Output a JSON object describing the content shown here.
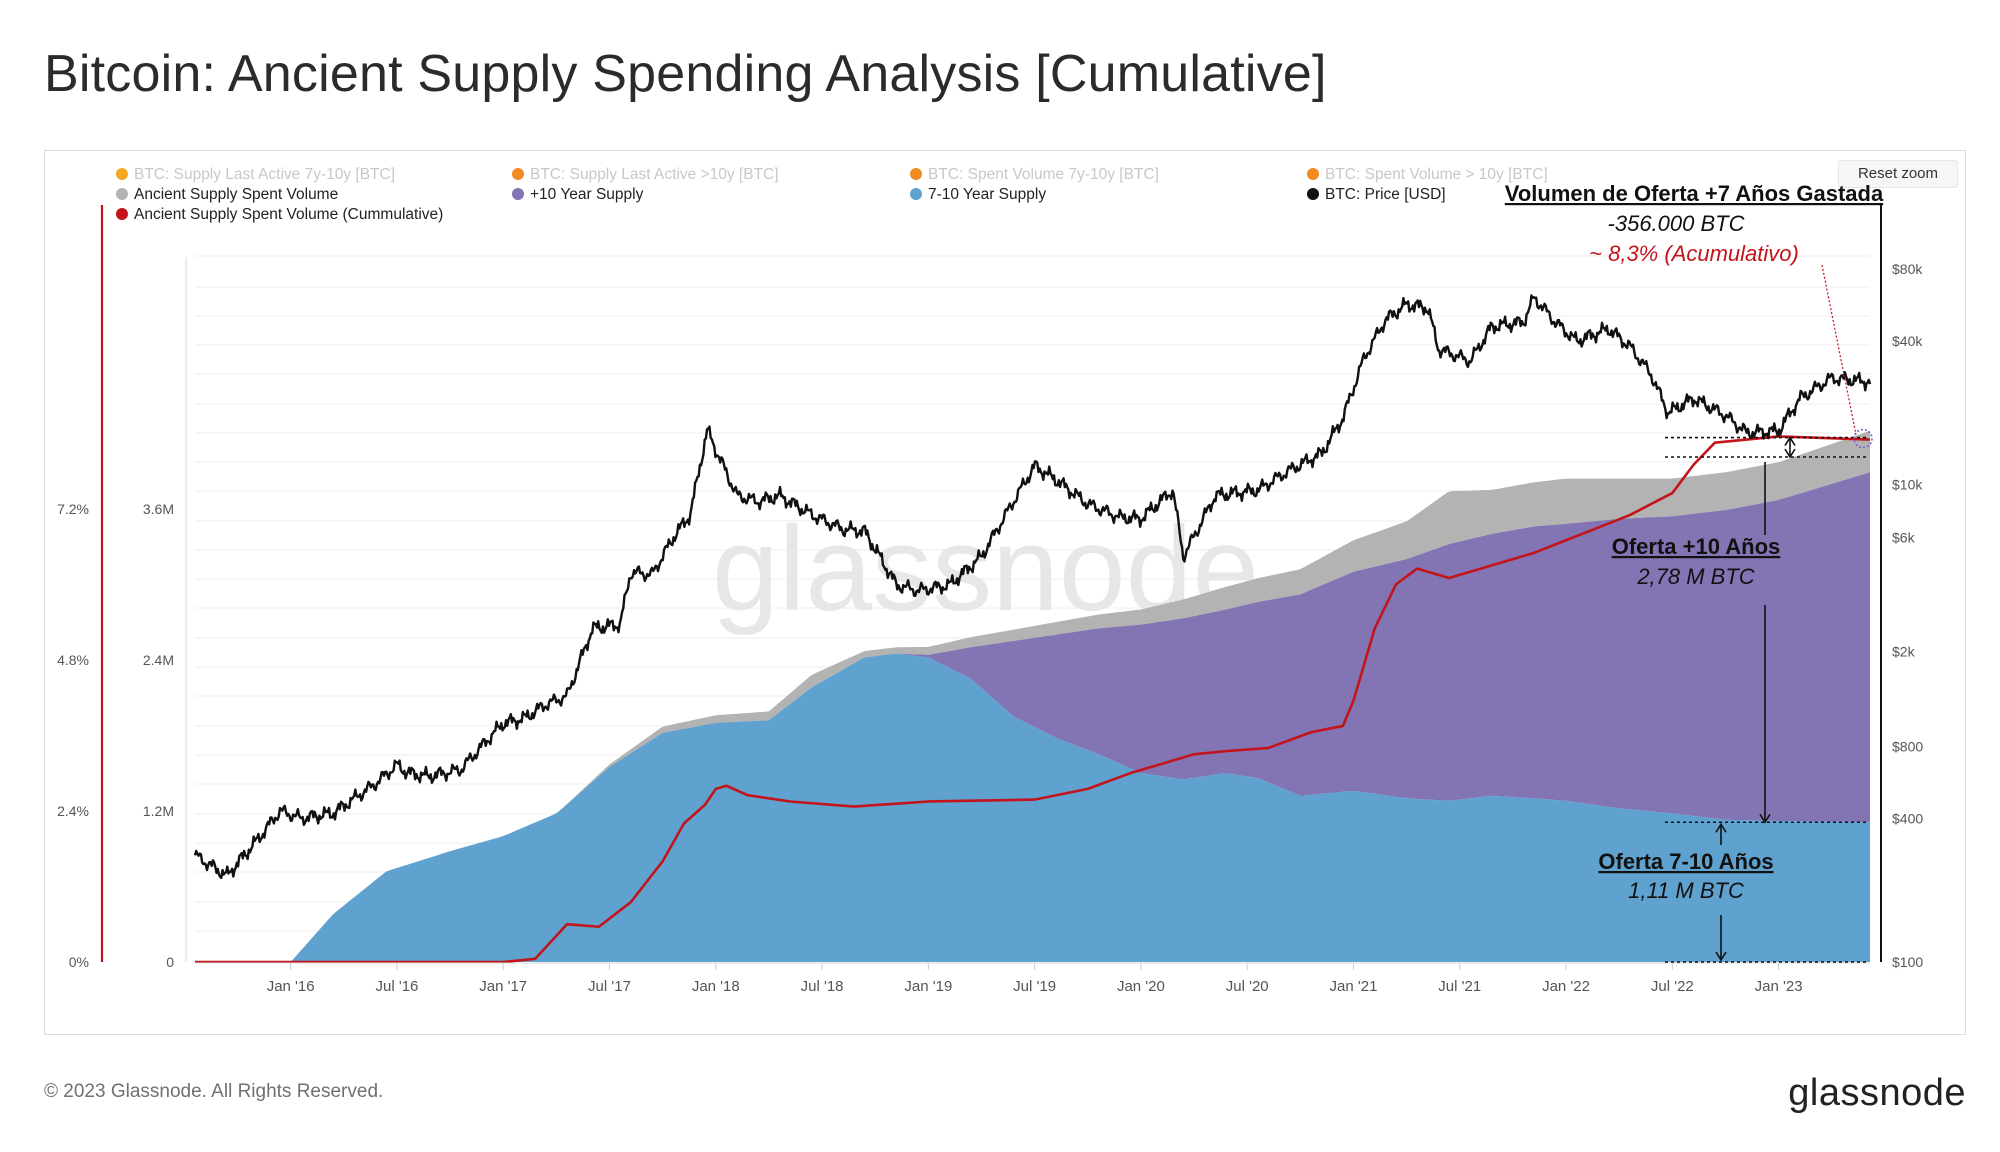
{
  "page": {
    "title": "Bitcoin: Ancient Supply Spending Analysis [Cumulative]",
    "footer": "© 2023 Glassnode. All Rights Reserved.",
    "brand": "glassnode",
    "reset_zoom": "Reset zoom",
    "watermark": "glassnode"
  },
  "legend": [
    {
      "label": "BTC: Supply Last Active 7y-10y [BTC]",
      "color": "#f5a623",
      "active": false
    },
    {
      "label": "BTC: Supply Last Active >10y [BTC]",
      "color": "#f28a22",
      "active": false
    },
    {
      "label": "BTC: Spent Volume 7y-10y [BTC]",
      "color": "#f28a22",
      "active": false
    },
    {
      "label": "BTC: Spent Volume > 10y [BTC]",
      "color": "#f28a22",
      "active": false
    },
    {
      "label": "Ancient Supply Spent Volume",
      "color": "#b3b3b3",
      "active": true
    },
    {
      "label": "+10 Year Supply",
      "color": "#8374b3",
      "active": true
    },
    {
      "label": "7-10 Year Supply",
      "color": "#5fa2cf",
      "active": true
    },
    {
      "label": "BTC: Price [USD]",
      "color": "#111111",
      "active": true
    },
    {
      "label": "Ancient Supply Spent Volume (Cummulative)",
      "color": "#c4141b",
      "active": true
    }
  ],
  "annotations": {
    "spent_title": "Volumen de Oferta +7 Años Gastada",
    "spent_value": "-356.000 BTC",
    "spent_pct": "~ 8,3% (Acumulativo)",
    "ten_title": "Oferta +10 Años",
    "ten_value": "2,78 M BTC",
    "seven_title": "Oferta 7-10 Años",
    "seven_value": "1,11 M BTC"
  },
  "chart_data": {
    "type": "area",
    "x_ticks": [
      "Jan '16",
      "Jul '16",
      "Jan '17",
      "Jul '17",
      "Jan '18",
      "Jul '18",
      "Jan '19",
      "Jul '19",
      "Jan '20",
      "Jul '20",
      "Jan '21",
      "Jul '21",
      "Jan '22",
      "Jul '22",
      "Jan '23"
    ],
    "xlim": [
      2015.55,
      2023.43
    ],
    "y_left_pct": {
      "ticks": [
        "0%",
        "2.4%",
        "4.8%",
        "7.2%"
      ],
      "ylim": [
        0,
        11.2
      ]
    },
    "y_left_supply": {
      "ticks": [
        "0",
        "1.2M",
        "2.4M",
        "3.6M"
      ],
      "ylim": [
        0,
        5.6
      ]
    },
    "y_right_price": {
      "ticks": [
        "$100",
        "$400",
        "$800",
        "$2k",
        "$6k",
        "$10k",
        "$40k",
        "$80k"
      ],
      "scale": "log",
      "ylim": [
        100,
        90000
      ]
    },
    "series": [
      {
        "name": "7-10 Year Supply",
        "unit": "M BTC",
        "color": "#5fa2cf",
        "points": [
          [
            2015.55,
            0
          ],
          [
            2016.0,
            0
          ],
          [
            2016.2,
            0.38
          ],
          [
            2016.45,
            0.72
          ],
          [
            2016.75,
            0.88
          ],
          [
            2017.0,
            1.0
          ],
          [
            2017.25,
            1.18
          ],
          [
            2017.5,
            1.55
          ],
          [
            2017.75,
            1.82
          ],
          [
            2018.0,
            1.9
          ],
          [
            2018.25,
            1.92
          ],
          [
            2018.45,
            2.18
          ],
          [
            2018.7,
            2.42
          ],
          [
            2018.85,
            2.45
          ],
          [
            2019.0,
            2.42
          ],
          [
            2019.2,
            2.25
          ],
          [
            2019.4,
            1.95
          ],
          [
            2019.6,
            1.78
          ],
          [
            2019.8,
            1.65
          ],
          [
            2020.0,
            1.5
          ],
          [
            2020.2,
            1.45
          ],
          [
            2020.4,
            1.5
          ],
          [
            2020.55,
            1.46
          ],
          [
            2020.75,
            1.32
          ],
          [
            2021.0,
            1.36
          ],
          [
            2021.25,
            1.3
          ],
          [
            2021.45,
            1.28
          ],
          [
            2021.65,
            1.32
          ],
          [
            2021.85,
            1.3
          ],
          [
            2022.0,
            1.28
          ],
          [
            2022.25,
            1.22
          ],
          [
            2022.5,
            1.18
          ],
          [
            2022.75,
            1.13
          ],
          [
            2023.0,
            1.12
          ],
          [
            2023.43,
            1.11
          ]
        ]
      },
      {
        "name": "+10 Year Supply",
        "unit": "M BTC",
        "color": "#8374b3",
        "points": [
          [
            2018.85,
            0
          ],
          [
            2019.0,
            0.02
          ],
          [
            2019.2,
            0.25
          ],
          [
            2019.4,
            0.6
          ],
          [
            2019.6,
            0.82
          ],
          [
            2019.8,
            1.0
          ],
          [
            2020.0,
            1.18
          ],
          [
            2020.2,
            1.28
          ],
          [
            2020.4,
            1.3
          ],
          [
            2020.55,
            1.4
          ],
          [
            2020.75,
            1.6
          ],
          [
            2021.0,
            1.74
          ],
          [
            2021.25,
            1.9
          ],
          [
            2021.45,
            2.04
          ],
          [
            2021.65,
            2.08
          ],
          [
            2021.85,
            2.16
          ],
          [
            2022.0,
            2.2
          ],
          [
            2022.25,
            2.3
          ],
          [
            2022.5,
            2.36
          ],
          [
            2022.75,
            2.46
          ],
          [
            2023.0,
            2.55
          ],
          [
            2023.43,
            2.78
          ]
        ]
      },
      {
        "name": "Ancient Supply Spent Volume",
        "unit": "M BTC",
        "color": "#b3b3b3",
        "points": [
          [
            2017.3,
            0
          ],
          [
            2017.5,
            0.02
          ],
          [
            2017.75,
            0.05
          ],
          [
            2018.0,
            0.06
          ],
          [
            2018.25,
            0.07
          ],
          [
            2018.45,
            0.1
          ],
          [
            2018.7,
            0.05
          ],
          [
            2018.85,
            0.05
          ],
          [
            2019.2,
            0.08
          ],
          [
            2019.6,
            0.1
          ],
          [
            2020.0,
            0.12
          ],
          [
            2020.2,
            0.15
          ],
          [
            2020.4,
            0.18
          ],
          [
            2020.75,
            0.2
          ],
          [
            2021.0,
            0.25
          ],
          [
            2021.25,
            0.3
          ],
          [
            2021.45,
            0.42
          ],
          [
            2021.65,
            0.35
          ],
          [
            2021.85,
            0.35
          ],
          [
            2022.0,
            0.36
          ],
          [
            2022.25,
            0.32
          ],
          [
            2022.5,
            0.3
          ],
          [
            2022.75,
            0.3
          ],
          [
            2023.0,
            0.3
          ],
          [
            2023.43,
            0.33
          ]
        ]
      },
      {
        "name": "Ancient Supply Spent Volume (Cummulative)",
        "unit": "%",
        "color": "#c4141b",
        "points": [
          [
            2015.55,
            0
          ],
          [
            2017.0,
            0
          ],
          [
            2017.15,
            0.05
          ],
          [
            2017.3,
            0.6
          ],
          [
            2017.45,
            0.56
          ],
          [
            2017.6,
            0.95
          ],
          [
            2017.75,
            1.6
          ],
          [
            2017.85,
            2.2
          ],
          [
            2017.95,
            2.5
          ],
          [
            2018.0,
            2.75
          ],
          [
            2018.05,
            2.8
          ],
          [
            2018.15,
            2.65
          ],
          [
            2018.35,
            2.55
          ],
          [
            2018.65,
            2.47
          ],
          [
            2019.0,
            2.55
          ],
          [
            2019.5,
            2.58
          ],
          [
            2019.75,
            2.75
          ],
          [
            2019.95,
            3.0
          ],
          [
            2020.1,
            3.15
          ],
          [
            2020.25,
            3.3
          ],
          [
            2020.4,
            3.35
          ],
          [
            2020.6,
            3.4
          ],
          [
            2020.8,
            3.65
          ],
          [
            2020.95,
            3.75
          ],
          [
            2021.0,
            4.15
          ],
          [
            2021.1,
            5.3
          ],
          [
            2021.2,
            6.0
          ],
          [
            2021.3,
            6.25
          ],
          [
            2021.45,
            6.1
          ],
          [
            2021.7,
            6.35
          ],
          [
            2021.85,
            6.5
          ],
          [
            2022.0,
            6.7
          ],
          [
            2022.15,
            6.9
          ],
          [
            2022.3,
            7.1
          ],
          [
            2022.5,
            7.45
          ],
          [
            2022.6,
            7.9
          ],
          [
            2022.7,
            8.25
          ],
          [
            2022.85,
            8.3
          ],
          [
            2023.0,
            8.35
          ],
          [
            2023.43,
            8.3
          ]
        ]
      },
      {
        "name": "BTC: Price [USD]",
        "unit": "USD",
        "color": "#111111",
        "points": [
          [
            2015.55,
            280
          ],
          [
            2015.7,
            230
          ],
          [
            2015.85,
            330
          ],
          [
            2015.95,
            430
          ],
          [
            2016.05,
            400
          ],
          [
            2016.2,
            420
          ],
          [
            2016.4,
            560
          ],
          [
            2016.5,
            670
          ],
          [
            2016.55,
            620
          ],
          [
            2016.65,
            600
          ],
          [
            2016.8,
            640
          ],
          [
            2016.95,
            900
          ],
          [
            2017.0,
            1000
          ],
          [
            2017.1,
            1050
          ],
          [
            2017.2,
            1200
          ],
          [
            2017.3,
            1300
          ],
          [
            2017.42,
            2500
          ],
          [
            2017.55,
            2600
          ],
          [
            2017.6,
            4300
          ],
          [
            2017.7,
            4200
          ],
          [
            2017.8,
            6000
          ],
          [
            2017.88,
            7500
          ],
          [
            2017.96,
            17000
          ],
          [
            2018.0,
            14000
          ],
          [
            2018.1,
            9000
          ],
          [
            2018.2,
            8500
          ],
          [
            2018.3,
            9000
          ],
          [
            2018.45,
            7500
          ],
          [
            2018.6,
            6500
          ],
          [
            2018.7,
            6400
          ],
          [
            2018.85,
            3800
          ],
          [
            2018.95,
            3600
          ],
          [
            2019.1,
            3800
          ],
          [
            2019.25,
            5000
          ],
          [
            2019.4,
            8500
          ],
          [
            2019.5,
            12000
          ],
          [
            2019.6,
            10500
          ],
          [
            2019.75,
            8300
          ],
          [
            2019.9,
            7300
          ],
          [
            2020.0,
            7200
          ],
          [
            2020.15,
            9500
          ],
          [
            2020.2,
            5000
          ],
          [
            2020.35,
            9000
          ],
          [
            2020.55,
            9500
          ],
          [
            2020.7,
            11500
          ],
          [
            2020.85,
            13500
          ],
          [
            2020.95,
            19000
          ],
          [
            2021.05,
            34000
          ],
          [
            2021.15,
            49000
          ],
          [
            2021.25,
            57000
          ],
          [
            2021.35,
            55000
          ],
          [
            2021.4,
            37000
          ],
          [
            2021.55,
            33000
          ],
          [
            2021.65,
            46000
          ],
          [
            2021.8,
            48000
          ],
          [
            2021.85,
            61000
          ],
          [
            2021.95,
            48000
          ],
          [
            2022.05,
            40000
          ],
          [
            2022.2,
            45000
          ],
          [
            2022.3,
            38000
          ],
          [
            2022.4,
            29000
          ],
          [
            2022.48,
            20000
          ],
          [
            2022.6,
            23000
          ],
          [
            2022.75,
            19500
          ],
          [
            2022.85,
            16500
          ],
          [
            2023.0,
            16800
          ],
          [
            2023.1,
            23000
          ],
          [
            2023.25,
            28000
          ],
          [
            2023.43,
            27000
          ]
        ]
      }
    ]
  }
}
